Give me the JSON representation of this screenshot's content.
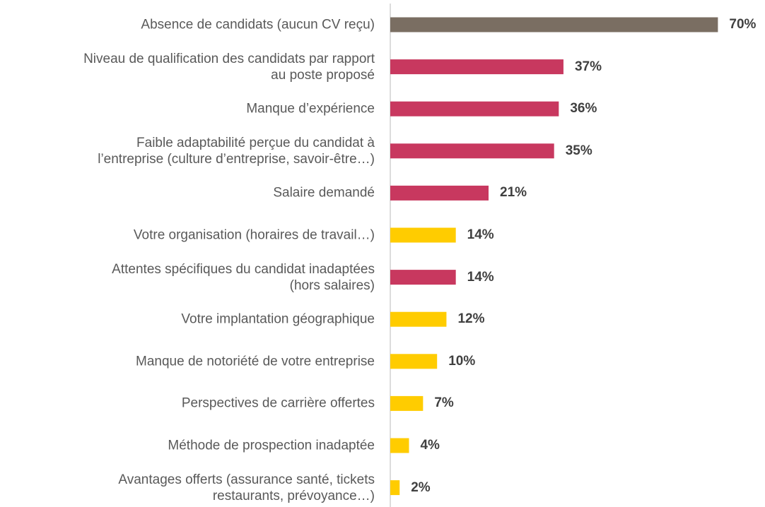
{
  "chart_data": {
    "type": "bar",
    "orientation": "horizontal",
    "categories": [
      "Absence de candidats (aucun CV reçu)",
      "Niveau de qualification des candidats par rapport\nau poste proposé",
      "Manque d’expérience",
      "Faible adaptabilité perçue du candidat à\nl’entreprise (culture d’entreprise, savoir-être…)",
      "Salaire demandé",
      "Votre organisation (horaires de travail…)",
      "Attentes spécifiques du candidat inadaptées\n(hors salaires)",
      "Votre implantation géographique",
      "Manque de notoriété de votre entreprise",
      "Perspectives de carrière offertes",
      "Méthode de prospection inadaptée",
      "Avantages offerts (assurance santé, tickets\nrestaurants, prévoyance…)"
    ],
    "values": [
      70,
      37,
      36,
      35,
      21,
      14,
      14,
      12,
      10,
      7,
      4,
      2
    ],
    "value_labels": [
      "70%",
      "37%",
      "36%",
      "35%",
      "21%",
      "14%",
      "14%",
      "12%",
      "10%",
      "7%",
      "4%",
      "2%"
    ],
    "colors": [
      "#7a6e62",
      "#c8385f",
      "#c8385f",
      "#c8385f",
      "#c8385f",
      "#ffcc00",
      "#c8385f",
      "#ffcc00",
      "#ffcc00",
      "#ffcc00",
      "#ffcc00",
      "#ffcc00"
    ]
  }
}
